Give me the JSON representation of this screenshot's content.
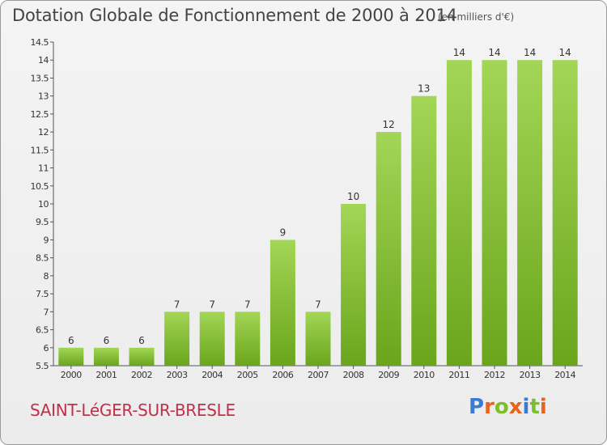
{
  "header": {
    "title": "Dotation Globale de Fonctionnement de 2000 à 2014",
    "subtitle": "(en milliers d'€)"
  },
  "footer": {
    "commune": "SAINT-LéGER-SUR-BRESLE",
    "logo": "Proxiti",
    "logo_colors": [
      "#3a7bd5",
      "#e8641e",
      "#7cbf2a",
      "#e8641e",
      "#3a7bd5",
      "#7cbf2a",
      "#e8641e"
    ]
  },
  "chart_data": {
    "type": "bar",
    "categories": [
      "2000",
      "2001",
      "2002",
      "2003",
      "2004",
      "2005",
      "2006",
      "2007",
      "2008",
      "2009",
      "2010",
      "2011",
      "2012",
      "2013",
      "2014"
    ],
    "values": [
      6,
      6,
      6,
      7,
      7,
      7,
      9,
      7,
      10,
      12,
      13,
      14,
      14,
      14,
      14
    ],
    "data_labels": [
      "6",
      "6",
      "6",
      "7",
      "7",
      "7",
      "9",
      "7",
      "10",
      "12",
      "13",
      "14",
      "14",
      "14",
      "14"
    ],
    "ylim": [
      5.5,
      14.5
    ],
    "yticks": [
      5.5,
      6,
      6.5,
      7,
      7.5,
      8,
      8.5,
      9,
      9.5,
      10,
      10.5,
      11,
      11.5,
      12,
      12.5,
      13,
      13.5,
      14,
      14.5
    ],
    "ytick_labels": [
      "5.5",
      "6",
      "6.5",
      "7",
      "7.5",
      "8",
      "8.5",
      "9",
      "9.5",
      "10",
      "10.5",
      "11",
      "11.5",
      "12",
      "12.5",
      "13",
      "13.5",
      "14",
      "14.5"
    ],
    "bar_color_light": "#a3d656",
    "bar_color_dark": "#6aa51c",
    "grid": false
  }
}
